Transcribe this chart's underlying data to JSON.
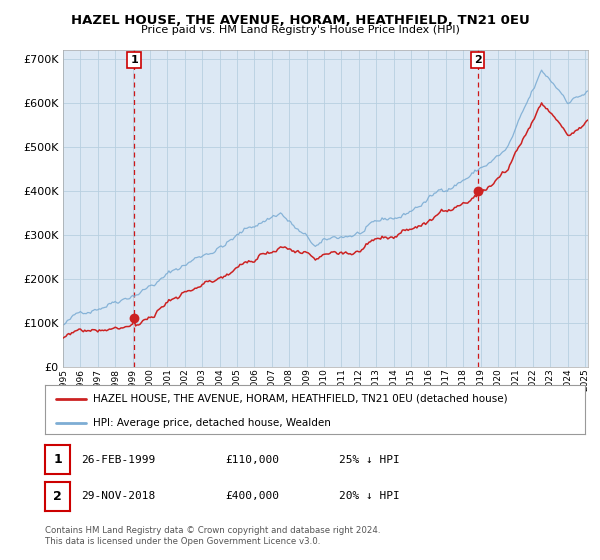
{
  "title": "HAZEL HOUSE, THE AVENUE, HORAM, HEATHFIELD, TN21 0EU",
  "subtitle": "Price paid vs. HM Land Registry's House Price Index (HPI)",
  "sale1_year": 1999,
  "sale1_month": 2,
  "sale1_price": 110000,
  "sale1_label": "1",
  "sale1_note": "26-FEB-1999",
  "sale1_pct": "25% ↓ HPI",
  "sale2_year": 2018,
  "sale2_month": 11,
  "sale2_price": 400000,
  "sale2_label": "2",
  "sale2_note": "29-NOV-2018",
  "sale2_pct": "20% ↓ HPI",
  "hpi_color": "#7dadd4",
  "price_color": "#cc2222",
  "plot_bg_color": "#dce8f4",
  "grid_color": "#b8cfe0",
  "vline_color": "#cc0000",
  "legend_label_price": "HAZEL HOUSE, THE AVENUE, HORAM, HEATHFIELD, TN21 0EU (detached house)",
  "legend_label_hpi": "HPI: Average price, detached house, Wealden",
  "footer": "Contains HM Land Registry data © Crown copyright and database right 2024.\nThis data is licensed under the Open Government Licence v3.0.",
  "ylim": [
    0,
    720000
  ],
  "yticks": [
    0,
    100000,
    200000,
    300000,
    400000,
    500000,
    600000,
    700000
  ],
  "start_year": 1995,
  "end_year": 2025
}
